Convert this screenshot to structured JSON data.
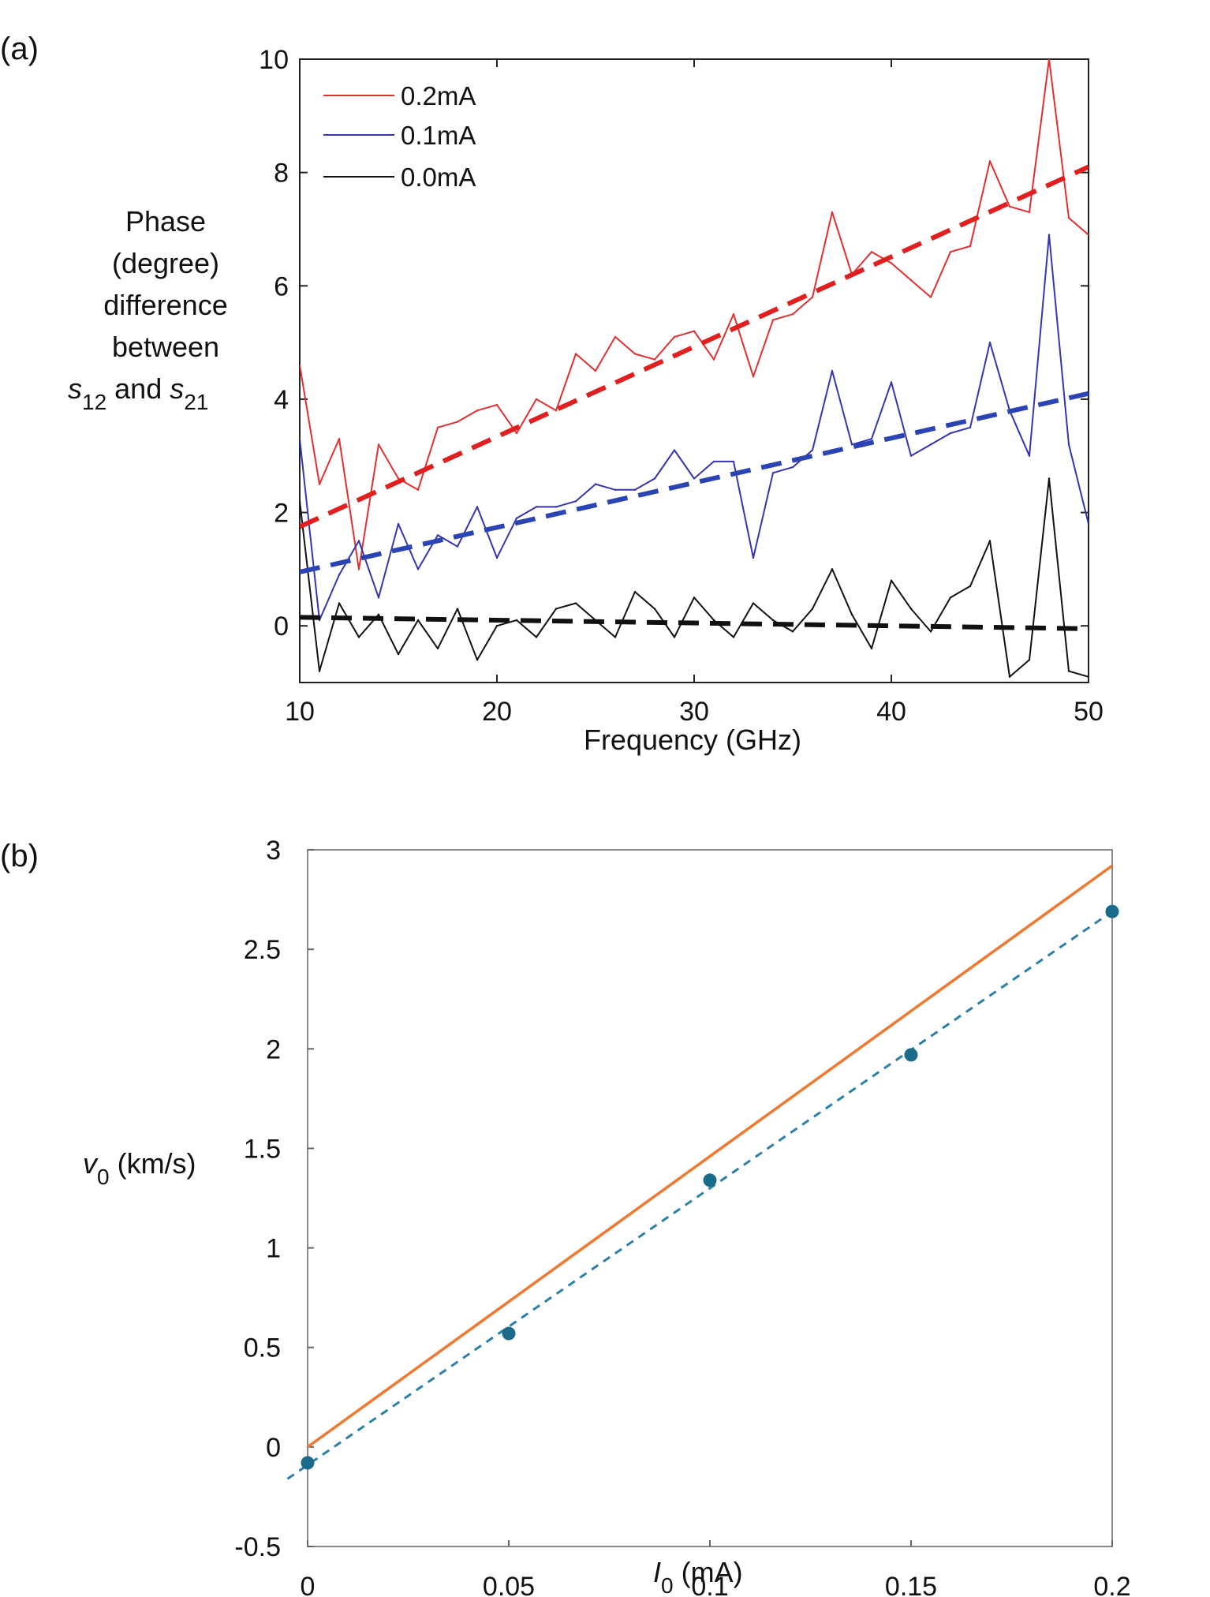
{
  "chart_data": [
    {
      "panel_label": "(a)",
      "type": "line",
      "title": "",
      "xlabel": "Frequency (GHz)",
      "ylabel_lines": [
        "Phase",
        "(degree)",
        "difference",
        "between"
      ],
      "ylabel_last": {
        "s12": "s",
        "s12_sub": "12",
        "and": " and ",
        "s21": "s",
        "s21_sub": "21"
      },
      "xlim": [
        10,
        50
      ],
      "ylim": [
        -1,
        10
      ],
      "xticks": [
        "10",
        "20",
        "30",
        "40",
        "50"
      ],
      "yticks": [
        "0",
        "2",
        "4",
        "6",
        "8",
        "10"
      ],
      "xtick_values": [
        10,
        20,
        30,
        40,
        50
      ],
      "ytick_values": [
        0,
        2,
        4,
        6,
        8,
        10
      ],
      "legend_position": "top-left",
      "series": [
        {
          "name": "0.2mA",
          "color": "#e03030",
          "fit_color": "#e02020",
          "fit": [
            [
              10,
              1.75
            ],
            [
              50,
              8.1
            ]
          ],
          "x": [
            10,
            11,
            12,
            13,
            14,
            15,
            16,
            17,
            18,
            19,
            20,
            21,
            22,
            23,
            24,
            25,
            26,
            27,
            28,
            29,
            30,
            31,
            32,
            33,
            34,
            35,
            36,
            37,
            38,
            39,
            40,
            41,
            42,
            43,
            44,
            45,
            46,
            47,
            48,
            49,
            50
          ],
          "y": [
            4.6,
            2.5,
            3.3,
            1.0,
            3.2,
            2.6,
            2.4,
            3.5,
            3.6,
            3.8,
            3.9,
            3.4,
            4.0,
            3.8,
            4.8,
            4.5,
            5.1,
            4.8,
            4.7,
            5.1,
            5.2,
            4.7,
            5.5,
            4.4,
            5.4,
            5.5,
            5.8,
            7.3,
            6.2,
            6.6,
            6.4,
            6.1,
            5.8,
            6.6,
            6.7,
            8.2,
            7.4,
            7.3,
            10.0,
            7.2,
            6.9
          ]
        },
        {
          "name": "0.1mA",
          "color": "#3535b0",
          "fit_color": "#2a44b4",
          "fit": [
            [
              10,
              0.95
            ],
            [
              50,
              4.1
            ]
          ],
          "x": [
            10,
            11,
            12,
            13,
            14,
            15,
            16,
            17,
            18,
            19,
            20,
            21,
            22,
            23,
            24,
            25,
            26,
            27,
            28,
            29,
            30,
            31,
            32,
            33,
            34,
            35,
            36,
            37,
            38,
            39,
            40,
            41,
            42,
            43,
            44,
            45,
            46,
            47,
            48,
            49,
            50
          ],
          "y": [
            3.3,
            0.1,
            0.9,
            1.5,
            0.5,
            1.8,
            1.0,
            1.6,
            1.4,
            2.1,
            1.2,
            1.9,
            2.1,
            2.1,
            2.2,
            2.5,
            2.4,
            2.4,
            2.6,
            3.1,
            2.6,
            2.9,
            2.9,
            1.2,
            2.7,
            2.8,
            3.1,
            4.5,
            3.2,
            3.3,
            4.3,
            3.0,
            3.2,
            3.4,
            3.5,
            5.0,
            3.8,
            3.0,
            6.9,
            3.2,
            1.8
          ]
        },
        {
          "name": "0.0mA",
          "color": "#111111",
          "fit_color": "#111111",
          "fit": [
            [
              10,
              0.15
            ],
            [
              50,
              -0.05
            ]
          ],
          "x": [
            10,
            11,
            12,
            13,
            14,
            15,
            16,
            17,
            18,
            19,
            20,
            21,
            22,
            23,
            24,
            25,
            26,
            27,
            28,
            29,
            30,
            31,
            32,
            33,
            34,
            35,
            36,
            37,
            38,
            39,
            40,
            41,
            42,
            43,
            44,
            45,
            46,
            47,
            48,
            49,
            50
          ],
          "y": [
            2.2,
            -0.8,
            0.4,
            -0.2,
            0.2,
            -0.5,
            0.1,
            -0.4,
            0.3,
            -0.6,
            0.0,
            0.1,
            -0.2,
            0.3,
            0.4,
            0.1,
            -0.2,
            0.6,
            0.3,
            -0.2,
            0.5,
            0.1,
            -0.2,
            0.4,
            0.1,
            -0.1,
            0.3,
            1.0,
            0.2,
            -0.4,
            0.8,
            0.3,
            -0.1,
            0.5,
            0.7,
            1.5,
            -0.9,
            -0.6,
            2.6,
            -0.8,
            -0.9
          ]
        }
      ]
    },
    {
      "panel_label": "(b)",
      "type": "scatter",
      "title": "",
      "xlabel_var": "I",
      "xlabel_sub": "0",
      "xlabel_unit": " (mA)",
      "ylabel_var": "v",
      "ylabel_sub": "0",
      "ylabel_unit": " (km/s)",
      "xlim": [
        0,
        0.2
      ],
      "ylim": [
        -0.5,
        3
      ],
      "xticks": [
        "0",
        "0.05",
        "0.1",
        "0.15",
        "0.2"
      ],
      "yticks": [
        "-0.5",
        "0",
        "0.5",
        "1",
        "1.5",
        "2",
        "2.5",
        "3"
      ],
      "xtick_values": [
        0,
        0.05,
        0.1,
        0.15,
        0.2
      ],
      "ytick_values": [
        -0.5,
        0,
        0.5,
        1,
        1.5,
        2,
        2.5,
        3
      ],
      "points": {
        "x": [
          0,
          0.05,
          0.1,
          0.15,
          0.2
        ],
        "y": [
          -0.08,
          0.57,
          1.34,
          1.97,
          2.69
        ],
        "color": "#1a6a8a"
      },
      "fit_dashed": {
        "x": [
          -0.005,
          0.2
        ],
        "y": [
          -0.16,
          2.69
        ],
        "color": "#2c7fa6"
      },
      "fit_solid": {
        "x": [
          0,
          0.2
        ],
        "y": [
          0.0,
          2.92
        ],
        "color": "#f07830"
      }
    }
  ]
}
